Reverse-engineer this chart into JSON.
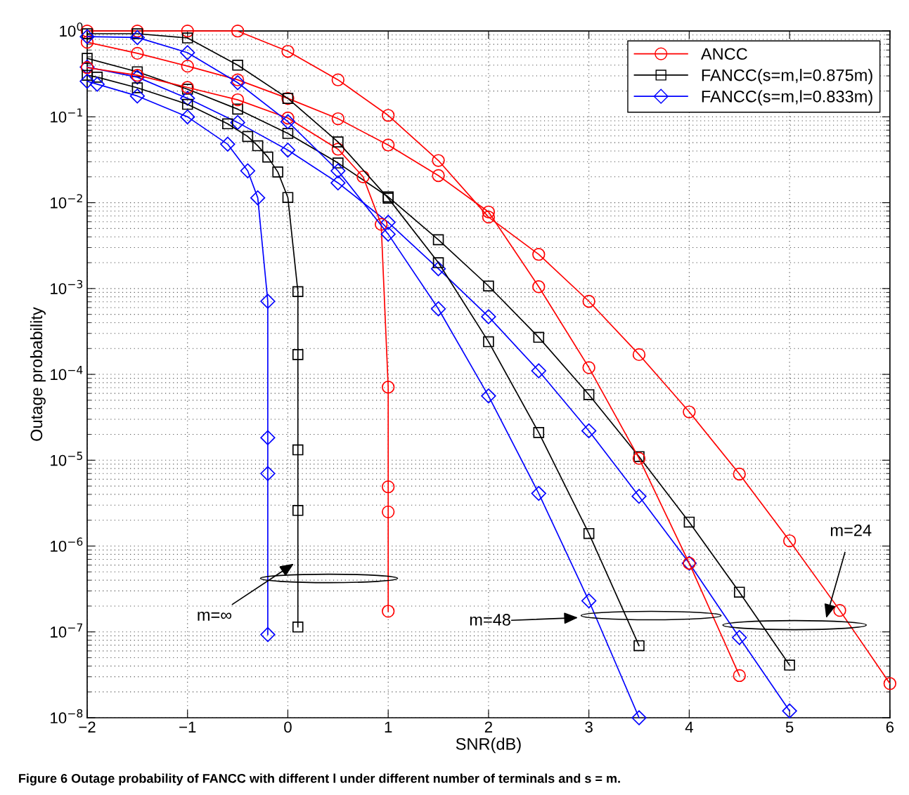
{
  "chart_data": {
    "type": "line",
    "xlabel": "SNR(dB)",
    "ylabel": "Outage probability",
    "log": "y",
    "grid": true,
    "legend": "top right",
    "xlim": [
      -2,
      6
    ],
    "xticks": [
      {
        "value": -2,
        "label": "−2"
      },
      {
        "value": -1,
        "label": "−1"
      },
      0,
      1,
      2,
      3,
      4,
      5,
      6
    ],
    "ylim": [
      1e-08,
      1
    ],
    "yticks": [
      {
        "value": 1e-08,
        "label": "10$^{−8}$"
      },
      {
        "value": 1e-07,
        "label": "10$^{−7}$"
      },
      {
        "value": 1e-06,
        "label": "10$^{−6}$"
      },
      {
        "value": 1e-05,
        "label": "10$^{−5}$"
      },
      {
        "value": 0.0001,
        "label": "10$^{−4}$"
      },
      {
        "value": 0.001,
        "label": "10$^{−3}$"
      },
      {
        "value": 0.01,
        "label": "10$^{−2}$"
      },
      {
        "value": 0.1,
        "label": "10$^{−1}$"
      },
      {
        "value": 1,
        "label": "10$^{0}$"
      }
    ],
    "series": [
      {
        "name": "ANCC",
        "color": "#ff0000",
        "marker": "circle",
        "x": [
          -2,
          -1.5,
          -1,
          -0.5,
          0,
          0.5,
          1,
          1.5,
          2,
          2.5,
          3,
          3.5,
          4,
          4.5,
          5,
          5.5,
          6
        ],
        "values": [
          1,
          1,
          1,
          1,
          0.58,
          0.27,
          0.104,
          0.031,
          0.0068,
          0.0025,
          0.00071,
          0.00017,
          3.65e-05,
          6.9e-06,
          1.15e-06,
          1.78e-07,
          2.5e-08
        ]
      },
      {
        "name": "FANCC(s=m,l=0.875m)",
        "color": "#000000",
        "marker": "square",
        "x": [
          -2,
          -1.5,
          -1,
          -0.5,
          0,
          0.5,
          1,
          1.5,
          2,
          2.5,
          3,
          3.5,
          4,
          4.5,
          5
        ],
        "values": [
          0.48,
          0.335,
          0.21,
          0.123,
          0.064,
          0.029,
          0.0117,
          0.0037,
          0.00107,
          0.00027,
          5.8e-05,
          1.1e-05,
          1.9e-06,
          2.9e-07,
          4.1e-08
        ]
      },
      {
        "name": "FANCC(s=m,l=0.833m)",
        "color": "#0000ff",
        "marker": "diamond",
        "x": [
          -2,
          -1.5,
          -1,
          -0.5,
          0,
          0.5,
          1,
          1.5,
          2,
          2.5,
          3,
          3.5,
          4,
          4.5,
          5
        ],
        "values": [
          0.38,
          0.29,
          0.164,
          0.086,
          0.041,
          0.017,
          0.0059,
          0.0017,
          0.00047,
          0.00011,
          2.2e-05,
          3.8e-06,
          6.3e-07,
          8.6e-08,
          1.2e-08
        ]
      },
      {
        "color": "#ff0000",
        "marker": "circle",
        "x": [
          -2,
          -1.5,
          -1,
          -0.5,
          0,
          0.5,
          1,
          1.5,
          2,
          2.5,
          3,
          3.5,
          4,
          4.5
        ],
        "values": [
          0.74,
          0.55,
          0.39,
          0.27,
          0.164,
          0.095,
          0.047,
          0.0207,
          0.0078,
          0.00105,
          0.00012,
          1.05e-05,
          6.3e-07,
          3.1e-08
        ]
      },
      {
        "color": "#ff0000",
        "marker": "circle",
        "x": [
          -2,
          -1.5,
          -1,
          -0.5,
          0,
          0.5,
          0.75,
          0.93,
          1,
          1,
          1,
          1
        ],
        "values": [
          0.375,
          0.305,
          0.22,
          0.158,
          0.097,
          0.042,
          0.02,
          0.0056,
          7.1e-05,
          4.9e-06,
          2.5e-06,
          1.74e-07
        ]
      },
      {
        "color": "#000000",
        "marker": "square",
        "x": [
          -2,
          -1.5,
          -1,
          -0.5,
          0,
          0.5,
          1,
          1.5,
          2,
          2.5,
          3,
          3.5
        ],
        "values": [
          0.93,
          0.93,
          0.83,
          0.4,
          0.164,
          0.051,
          0.0113,
          0.002,
          0.00024,
          2.1e-05,
          1.4e-06,
          6.9e-08
        ]
      },
      {
        "color": "#000000",
        "marker": "square",
        "x": [
          -2,
          -1.9,
          -1.5,
          -1,
          -0.6,
          -0.4,
          -0.3,
          -0.2,
          -0.1,
          0,
          0.1,
          0.1,
          0.1,
          0.1,
          0.1
        ],
        "values": [
          0.305,
          0.29,
          0.218,
          0.14,
          0.083,
          0.059,
          0.046,
          0.034,
          0.0228,
          0.0115,
          0.00092,
          0.00017,
          1.32e-05,
          2.6e-06,
          1.14e-07
        ]
      },
      {
        "color": "#0000ff",
        "marker": "diamond",
        "x": [
          -2,
          -1.5,
          -1,
          -0.5,
          0,
          0.5,
          1,
          1.5,
          2,
          2.5,
          3,
          3.5
        ],
        "values": [
          0.86,
          0.84,
          0.56,
          0.25,
          0.088,
          0.0235,
          0.0043,
          0.00058,
          5.6e-05,
          4.1e-06,
          2.3e-07,
          1e-08
        ]
      },
      {
        "color": "#0000ff",
        "marker": "diamond",
        "x": [
          -2,
          -1.9,
          -1.5,
          -1,
          -0.6,
          -0.4,
          -0.3,
          -0.2,
          -0.2,
          -0.2,
          -0.2
        ],
        "values": [
          0.26,
          0.24,
          0.175,
          0.1,
          0.048,
          0.0235,
          0.0114,
          0.00071,
          1.83e-05,
          7e-06,
          9.3e-08
        ]
      }
    ],
    "annotations": [
      "m=∞",
      "m=48",
      "m=24",
      "Figure 6 Outage probability of FANCC with different l under different number of terminals and s = m."
    ]
  }
}
